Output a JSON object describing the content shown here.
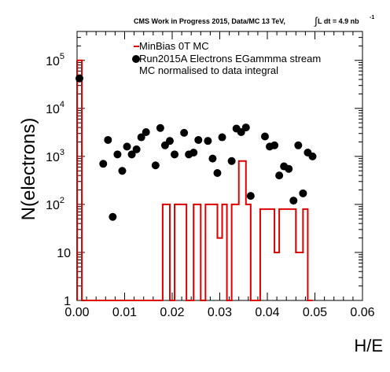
{
  "chart_data": {
    "type": "histogram+scatter",
    "title": "CMS Work in Progress 2015, Data/MC 13 TeV,",
    "lumi_integral_symbol": "∫",
    "lumi_text": "L dt = 4.9 nb",
    "lumi_exponent": "-1",
    "xlabel": "H/E",
    "ylabel": "N(electrons)",
    "xlim": [
      0,
      0.06
    ],
    "ylim": [
      1,
      400000
    ],
    "yscale": "log",
    "x_ticks": [
      {
        "value": 0.0,
        "label": "0.00"
      },
      {
        "value": 0.01,
        "label": "0.01"
      },
      {
        "value": 0.02,
        "label": "0.02"
      },
      {
        "value": 0.03,
        "label": "0.03"
      },
      {
        "value": 0.04,
        "label": "0.04"
      },
      {
        "value": 0.05,
        "label": "0.05"
      },
      {
        "value": 0.06,
        "label": "0.06"
      }
    ],
    "y_ticks": [
      {
        "value": 1,
        "base": "1",
        "exp": ""
      },
      {
        "value": 10,
        "base": "10",
        "exp": ""
      },
      {
        "value": 100,
        "base": "10",
        "exp": "2"
      },
      {
        "value": 1000,
        "base": "10",
        "exp": "3"
      },
      {
        "value": 10000,
        "base": "10",
        "exp": "4"
      },
      {
        "value": 100000,
        "base": "10",
        "exp": "5"
      }
    ],
    "legend": [
      {
        "name": "MinBias 0T MC",
        "style": "line",
        "color": "#dd0000"
      },
      {
        "name": "Run2015A Electrons EGammma stream",
        "style": "marker",
        "color": "#000000"
      },
      {
        "name": "MC normalised to data integral",
        "style": "none",
        "color": "#000000"
      }
    ],
    "series": [
      {
        "name": "MinBias 0T MC",
        "kind": "histogram",
        "color": "#dd0000",
        "bin_edges": [
          0.0,
          0.001,
          0.0015,
          0.018,
          0.0195,
          0.0205,
          0.0215,
          0.023,
          0.0245,
          0.026,
          0.027,
          0.028,
          0.0295,
          0.0305,
          0.0315,
          0.0325,
          0.034,
          0.0355,
          0.0365,
          0.0385,
          0.0405,
          0.0415,
          0.0425,
          0.0445,
          0.046,
          0.0475,
          0.0485
        ],
        "counts": [
          100000,
          1,
          1,
          100,
          1,
          100,
          100,
          1,
          100,
          1,
          100,
          100,
          20,
          100,
          1,
          100,
          800,
          100,
          1,
          80,
          80,
          10,
          80,
          80,
          10,
          80,
          1
        ]
      },
      {
        "name": "Run2015A Electrons EGammma stream",
        "kind": "markers",
        "color": "#000000",
        "points": [
          {
            "x": 0.0005,
            "y": 42000
          },
          {
            "x": 0.0055,
            "y": 700
          },
          {
            "x": 0.0065,
            "y": 2200
          },
          {
            "x": 0.0075,
            "y": 55
          },
          {
            "x": 0.0085,
            "y": 1100
          },
          {
            "x": 0.0095,
            "y": 500
          },
          {
            "x": 0.0105,
            "y": 1600
          },
          {
            "x": 0.0115,
            "y": 1100
          },
          {
            "x": 0.0125,
            "y": 1400
          },
          {
            "x": 0.0135,
            "y": 2500
          },
          {
            "x": 0.0145,
            "y": 3200
          },
          {
            "x": 0.0165,
            "y": 650
          },
          {
            "x": 0.0175,
            "y": 3900
          },
          {
            "x": 0.0185,
            "y": 1700
          },
          {
            "x": 0.0195,
            "y": 2100
          },
          {
            "x": 0.0205,
            "y": 1100
          },
          {
            "x": 0.0225,
            "y": 3100
          },
          {
            "x": 0.0235,
            "y": 1100
          },
          {
            "x": 0.0245,
            "y": 1200
          },
          {
            "x": 0.0255,
            "y": 2200
          },
          {
            "x": 0.0275,
            "y": 2100
          },
          {
            "x": 0.0285,
            "y": 900
          },
          {
            "x": 0.0295,
            "y": 450
          },
          {
            "x": 0.0305,
            "y": 2500
          },
          {
            "x": 0.0325,
            "y": 800
          },
          {
            "x": 0.0335,
            "y": 3800
          },
          {
            "x": 0.0345,
            "y": 3200
          },
          {
            "x": 0.0355,
            "y": 4000
          },
          {
            "x": 0.0365,
            "y": 150
          },
          {
            "x": 0.0395,
            "y": 2600
          },
          {
            "x": 0.0405,
            "y": 1600
          },
          {
            "x": 0.0415,
            "y": 1700
          },
          {
            "x": 0.0425,
            "y": 400
          },
          {
            "x": 0.0435,
            "y": 620
          },
          {
            "x": 0.0445,
            "y": 550
          },
          {
            "x": 0.0455,
            "y": 120
          },
          {
            "x": 0.0465,
            "y": 1700
          },
          {
            "x": 0.0475,
            "y": 170
          },
          {
            "x": 0.0485,
            "y": 1200
          },
          {
            "x": 0.0495,
            "y": 1000
          }
        ]
      }
    ]
  }
}
